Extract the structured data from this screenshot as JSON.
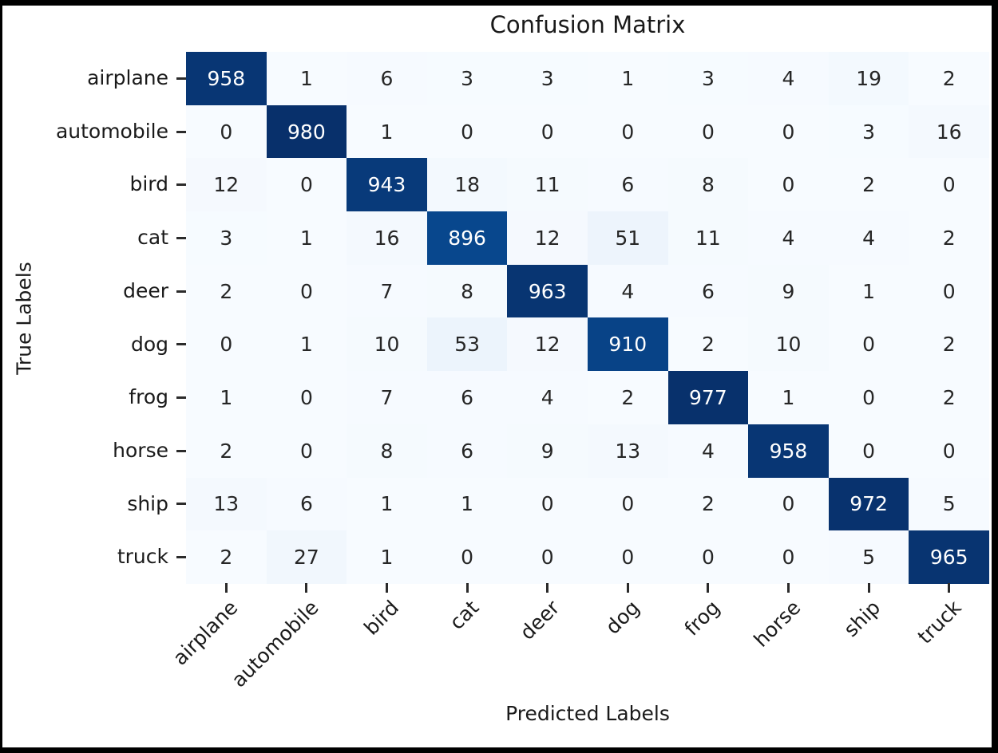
{
  "figure": {
    "title": "Confusion Matrix",
    "x_axis_title": "Predicted Labels",
    "y_axis_title": "True Labels"
  },
  "chart_data": {
    "type": "heatmap",
    "title": "Confusion Matrix",
    "xlabel": "Predicted Labels",
    "ylabel": "True Labels",
    "categories": [
      "airplane",
      "automobile",
      "bird",
      "cat",
      "deer",
      "dog",
      "frog",
      "horse",
      "ship",
      "truck"
    ],
    "x_categories": [
      "airplane",
      "automobile",
      "bird",
      "cat",
      "deer",
      "dog",
      "frog",
      "horse",
      "ship",
      "truck"
    ],
    "matrix": [
      [
        958,
        1,
        6,
        3,
        3,
        1,
        3,
        4,
        19,
        2
      ],
      [
        0,
        980,
        1,
        0,
        0,
        0,
        0,
        0,
        3,
        16
      ],
      [
        12,
        0,
        943,
        18,
        11,
        6,
        8,
        0,
        2,
        0
      ],
      [
        3,
        1,
        16,
        896,
        12,
        51,
        11,
        4,
        4,
        2
      ],
      [
        2,
        0,
        7,
        8,
        963,
        4,
        6,
        9,
        1,
        0
      ],
      [
        0,
        1,
        10,
        53,
        12,
        910,
        2,
        10,
        0,
        2
      ],
      [
        1,
        0,
        7,
        6,
        4,
        2,
        977,
        1,
        0,
        2
      ],
      [
        2,
        0,
        8,
        6,
        9,
        13,
        4,
        958,
        0,
        0
      ],
      [
        13,
        6,
        1,
        1,
        0,
        0,
        2,
        0,
        972,
        5
      ],
      [
        2,
        27,
        1,
        0,
        0,
        0,
        0,
        0,
        5,
        965
      ]
    ],
    "colormap": "Blues",
    "vmin": 0,
    "vmax": 980,
    "annotated": true,
    "colorbar": false,
    "grid": false,
    "x_tick_rotation_deg": 45
  },
  "colors": {
    "cmap_low": "#f7fbff",
    "cmap_high": "#08306b",
    "annot_dark": "#262626",
    "annot_light": "#ffffff",
    "tick_mark": "#2b2b2b",
    "frame": "#000000",
    "background": "#ffffff"
  }
}
